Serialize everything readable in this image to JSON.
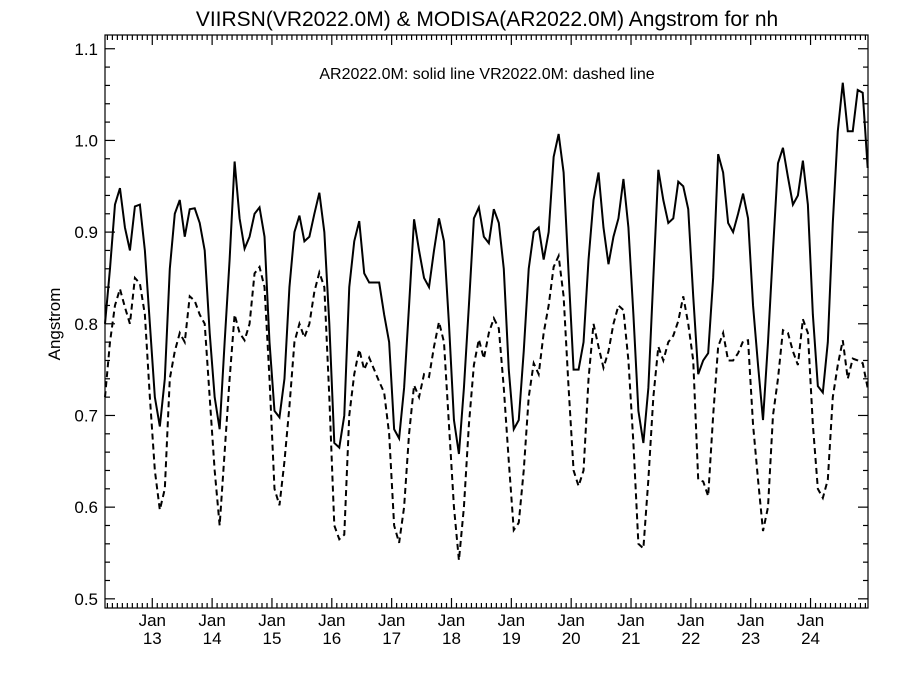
{
  "chart_data": {
    "type": "line",
    "title": "VIIRSN(VR2022.0M) & MODISA(AR2022.0M)  Angstrom for nh",
    "legend_note": "AR2022.0M: solid line   VR2022.0M: dashed line",
    "ylabel": "Angstrom",
    "xlabel": "",
    "ylim": [
      0.49,
      1.115
    ],
    "xlim": [
      2012.21,
      2024.96
    ],
    "yticks": [
      "0.5",
      "0.6",
      "0.7",
      "0.8",
      "0.9",
      "1.0",
      "1.1"
    ],
    "x_tick_labels": [
      {
        "month": "Jan",
        "year": "13"
      },
      {
        "month": "Jan",
        "year": "14"
      },
      {
        "month": "Jan",
        "year": "15"
      },
      {
        "month": "Jan",
        "year": "16"
      },
      {
        "month": "Jan",
        "year": "17"
      },
      {
        "month": "Jan",
        "year": "18"
      },
      {
        "month": "Jan",
        "year": "19"
      },
      {
        "month": "Jan",
        "year": "20"
      },
      {
        "month": "Jan",
        "year": "21"
      },
      {
        "month": "Jan",
        "year": "22"
      },
      {
        "month": "Jan",
        "year": "23"
      },
      {
        "month": "Jan",
        "year": "24"
      }
    ],
    "grid": false,
    "x_start": 2012.21,
    "x_step_years": 0.0833,
    "series": [
      {
        "style": "solid",
        "values": [
          0.8,
          0.86,
          0.93,
          0.948,
          0.905,
          0.88,
          0.928,
          0.93,
          0.88,
          0.8,
          0.72,
          0.688,
          0.74,
          0.86,
          0.92,
          0.935,
          0.895,
          0.925,
          0.926,
          0.91,
          0.88,
          0.79,
          0.72,
          0.685,
          0.78,
          0.87,
          0.977,
          0.915,
          0.882,
          0.895,
          0.92,
          0.927,
          0.895,
          0.78,
          0.705,
          0.698,
          0.74,
          0.84,
          0.9,
          0.918,
          0.89,
          0.895,
          0.92,
          0.943,
          0.9,
          0.8,
          0.67,
          0.665,
          0.7,
          0.84,
          0.89,
          0.912,
          0.855,
          0.845,
          0.845,
          0.845,
          0.81,
          0.78,
          0.685,
          0.675,
          0.73,
          0.82,
          0.914,
          0.88,
          0.85,
          0.84,
          0.88,
          0.915,
          0.89,
          0.8,
          0.695,
          0.658,
          0.73,
          0.82,
          0.915,
          0.927,
          0.895,
          0.888,
          0.925,
          0.91,
          0.86,
          0.75,
          0.685,
          0.695,
          0.77,
          0.86,
          0.9,
          0.905,
          0.87,
          0.9,
          0.982,
          1.007,
          0.965,
          0.855,
          0.75,
          0.75,
          0.78,
          0.87,
          0.935,
          0.965,
          0.905,
          0.865,
          0.895,
          0.915,
          0.958,
          0.905,
          0.81,
          0.705,
          0.67,
          0.73,
          0.85,
          0.968,
          0.935,
          0.91,
          0.915,
          0.955,
          0.95,
          0.925,
          0.83,
          0.745,
          0.76,
          0.768,
          0.85,
          0.985,
          0.965,
          0.91,
          0.9,
          0.92,
          0.942,
          0.915,
          0.82,
          0.755,
          0.695,
          0.78,
          0.88,
          0.975,
          0.992,
          0.96,
          0.93,
          0.94,
          0.978,
          0.93,
          0.81,
          0.732,
          0.725,
          0.78,
          0.91,
          1.01,
          1.063,
          1.01,
          1.01,
          1.055,
          1.052,
          0.97
        ]
      },
      {
        "style": "dashed",
        "values": [
          0.72,
          0.78,
          0.82,
          0.838,
          0.818,
          0.8,
          0.85,
          0.844,
          0.81,
          0.72,
          0.64,
          0.597,
          0.62,
          0.74,
          0.77,
          0.79,
          0.78,
          0.83,
          0.825,
          0.81,
          0.8,
          0.72,
          0.64,
          0.58,
          0.66,
          0.74,
          0.81,
          0.79,
          0.782,
          0.8,
          0.855,
          0.862,
          0.84,
          0.74,
          0.62,
          0.602,
          0.65,
          0.71,
          0.78,
          0.8,
          0.785,
          0.8,
          0.835,
          0.856,
          0.84,
          0.72,
          0.58,
          0.565,
          0.57,
          0.7,
          0.745,
          0.772,
          0.75,
          0.763,
          0.75,
          0.737,
          0.725,
          0.68,
          0.58,
          0.561,
          0.6,
          0.68,
          0.733,
          0.72,
          0.745,
          0.742,
          0.775,
          0.802,
          0.78,
          0.69,
          0.6,
          0.542,
          0.6,
          0.69,
          0.755,
          0.783,
          0.762,
          0.79,
          0.806,
          0.795,
          0.73,
          0.65,
          0.575,
          0.583,
          0.64,
          0.72,
          0.757,
          0.745,
          0.79,
          0.82,
          0.862,
          0.874,
          0.83,
          0.73,
          0.64,
          0.623,
          0.64,
          0.74,
          0.8,
          0.775,
          0.752,
          0.77,
          0.8,
          0.82,
          0.815,
          0.76,
          0.67,
          0.56,
          0.555,
          0.63,
          0.72,
          0.775,
          0.76,
          0.78,
          0.787,
          0.803,
          0.83,
          0.8,
          0.76,
          0.63,
          0.628,
          0.612,
          0.7,
          0.775,
          0.79,
          0.76,
          0.76,
          0.768,
          0.781,
          0.782,
          0.69,
          0.63,
          0.574,
          0.6,
          0.7,
          0.74,
          0.793,
          0.79,
          0.77,
          0.755,
          0.805,
          0.79,
          0.69,
          0.62,
          0.61,
          0.63,
          0.72,
          0.755,
          0.782,
          0.74,
          0.762,
          0.76,
          0.757,
          0.73
        ]
      }
    ]
  }
}
